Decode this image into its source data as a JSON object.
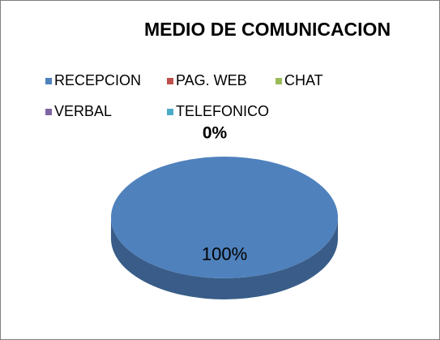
{
  "chart_data": {
    "type": "pie",
    "title": "MEDIO DE COMUNICACION",
    "categories": [
      "RECEPCION",
      "PAG. WEB",
      "CHAT",
      "VERBAL",
      "TELEFONICO"
    ],
    "values": [
      100,
      0,
      0,
      0,
      0
    ],
    "value_labels": [
      "100%",
      "0%",
      null,
      null,
      null
    ],
    "colors": [
      "#4f81bd",
      "#c0504d",
      "#9bbb59",
      "#8064a2",
      "#4bacc6"
    ],
    "legend": "top"
  }
}
